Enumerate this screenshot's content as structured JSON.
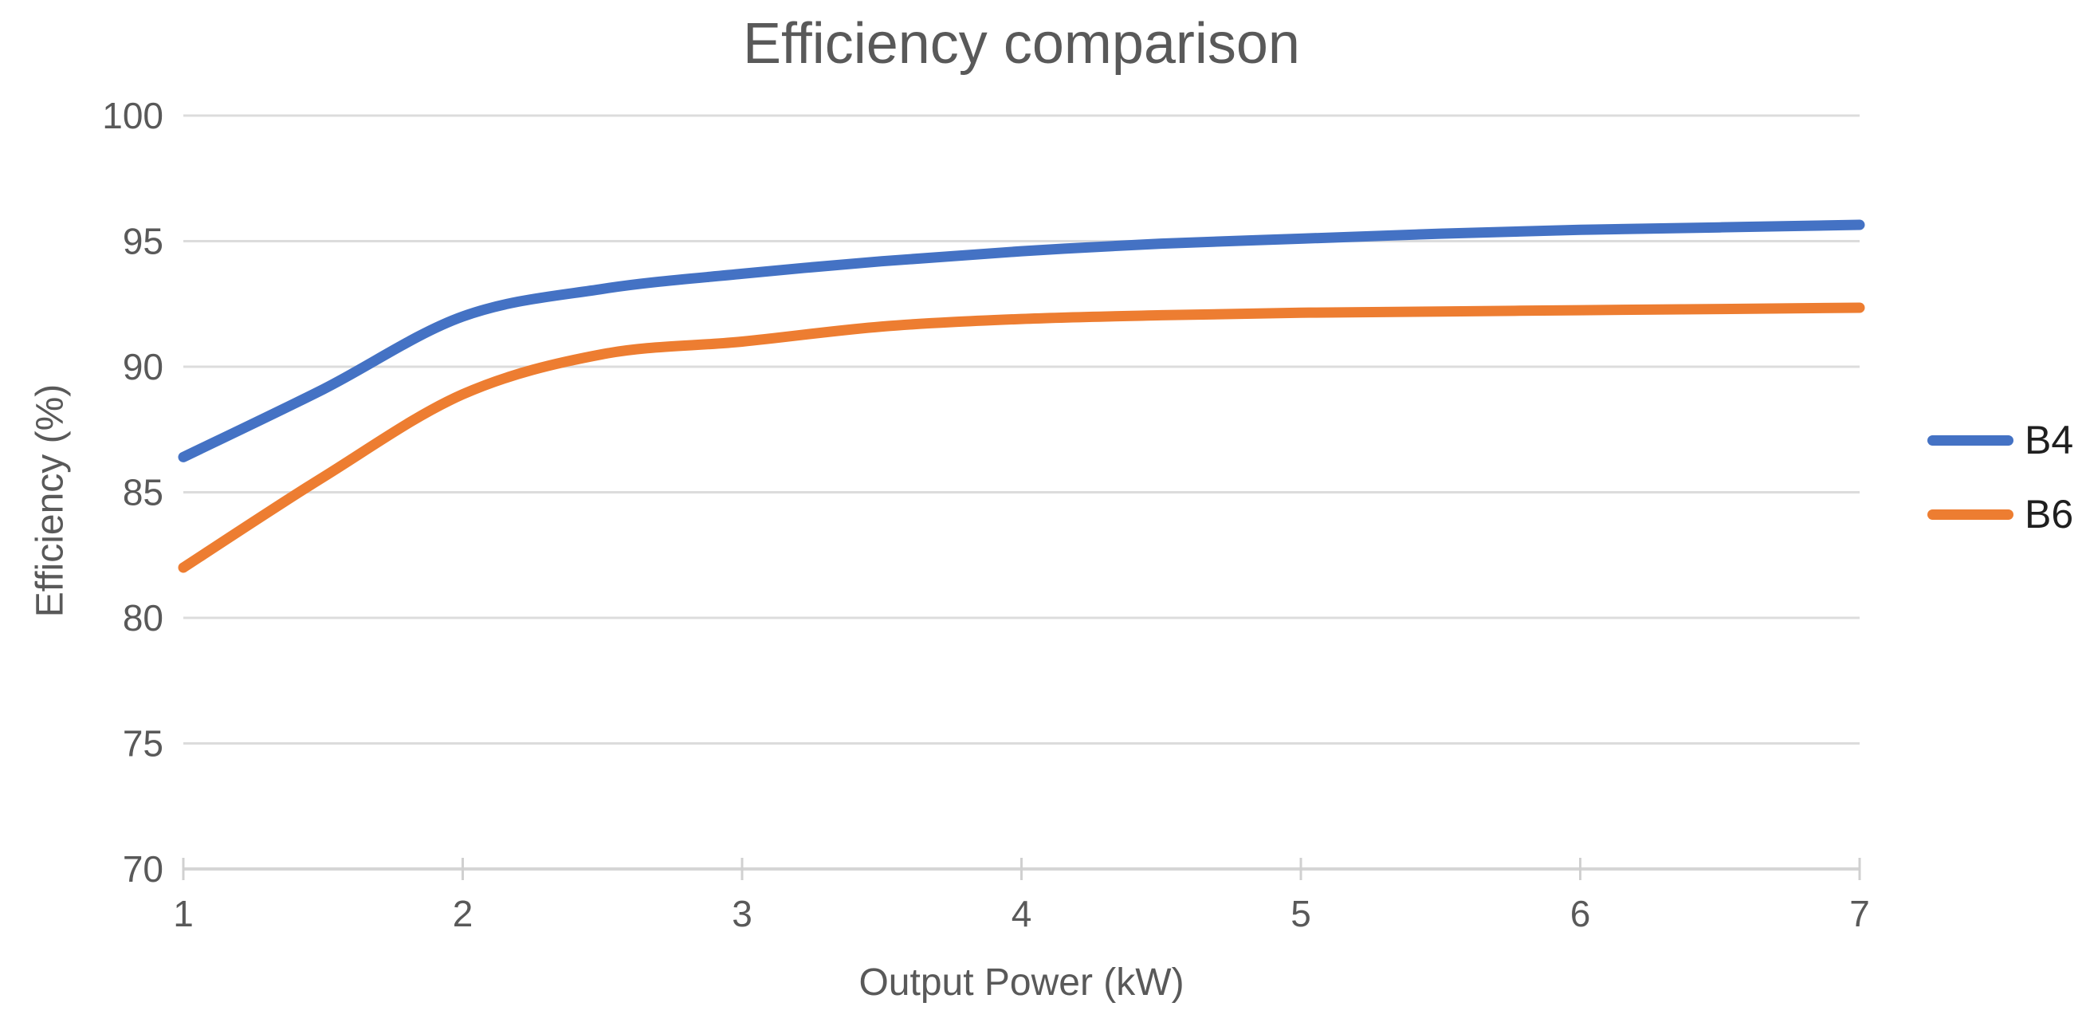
{
  "chart_data": {
    "type": "line",
    "title": "Efficiency comparison",
    "xlabel": "Output Power (kW)",
    "ylabel": "Efficiency (%)",
    "xlim": [
      1,
      7
    ],
    "ylim": [
      70,
      100
    ],
    "x_ticks": [
      1,
      2,
      3,
      4,
      5,
      6,
      7
    ],
    "y_ticks": [
      70,
      75,
      80,
      85,
      90,
      95,
      100
    ],
    "grid": "horizontal",
    "legend_position": "right",
    "x": [
      1,
      1.5,
      2,
      2.5,
      3,
      3.5,
      4,
      4.5,
      5,
      5.5,
      6,
      6.5,
      7
    ],
    "series": [
      {
        "name": "B4",
        "color": "#4472C4",
        "values": [
          86.4,
          89.1,
          92.0,
          93.1,
          93.7,
          94.2,
          94.6,
          94.9,
          95.1,
          95.3,
          95.45,
          95.55,
          95.65
        ]
      },
      {
        "name": "B6",
        "color": "#ED7D31",
        "values": [
          82.0,
          85.6,
          88.9,
          90.5,
          91.0,
          91.6,
          91.9,
          92.05,
          92.15,
          92.2,
          92.25,
          92.3,
          92.35
        ]
      }
    ],
    "style": {
      "gridline_color": "#DCDCDC",
      "axis_line_color": "#D5D5D5",
      "tick_mark_color": "#D0D0D0",
      "tick_label_color": "#595959",
      "line_width": 13
    }
  }
}
